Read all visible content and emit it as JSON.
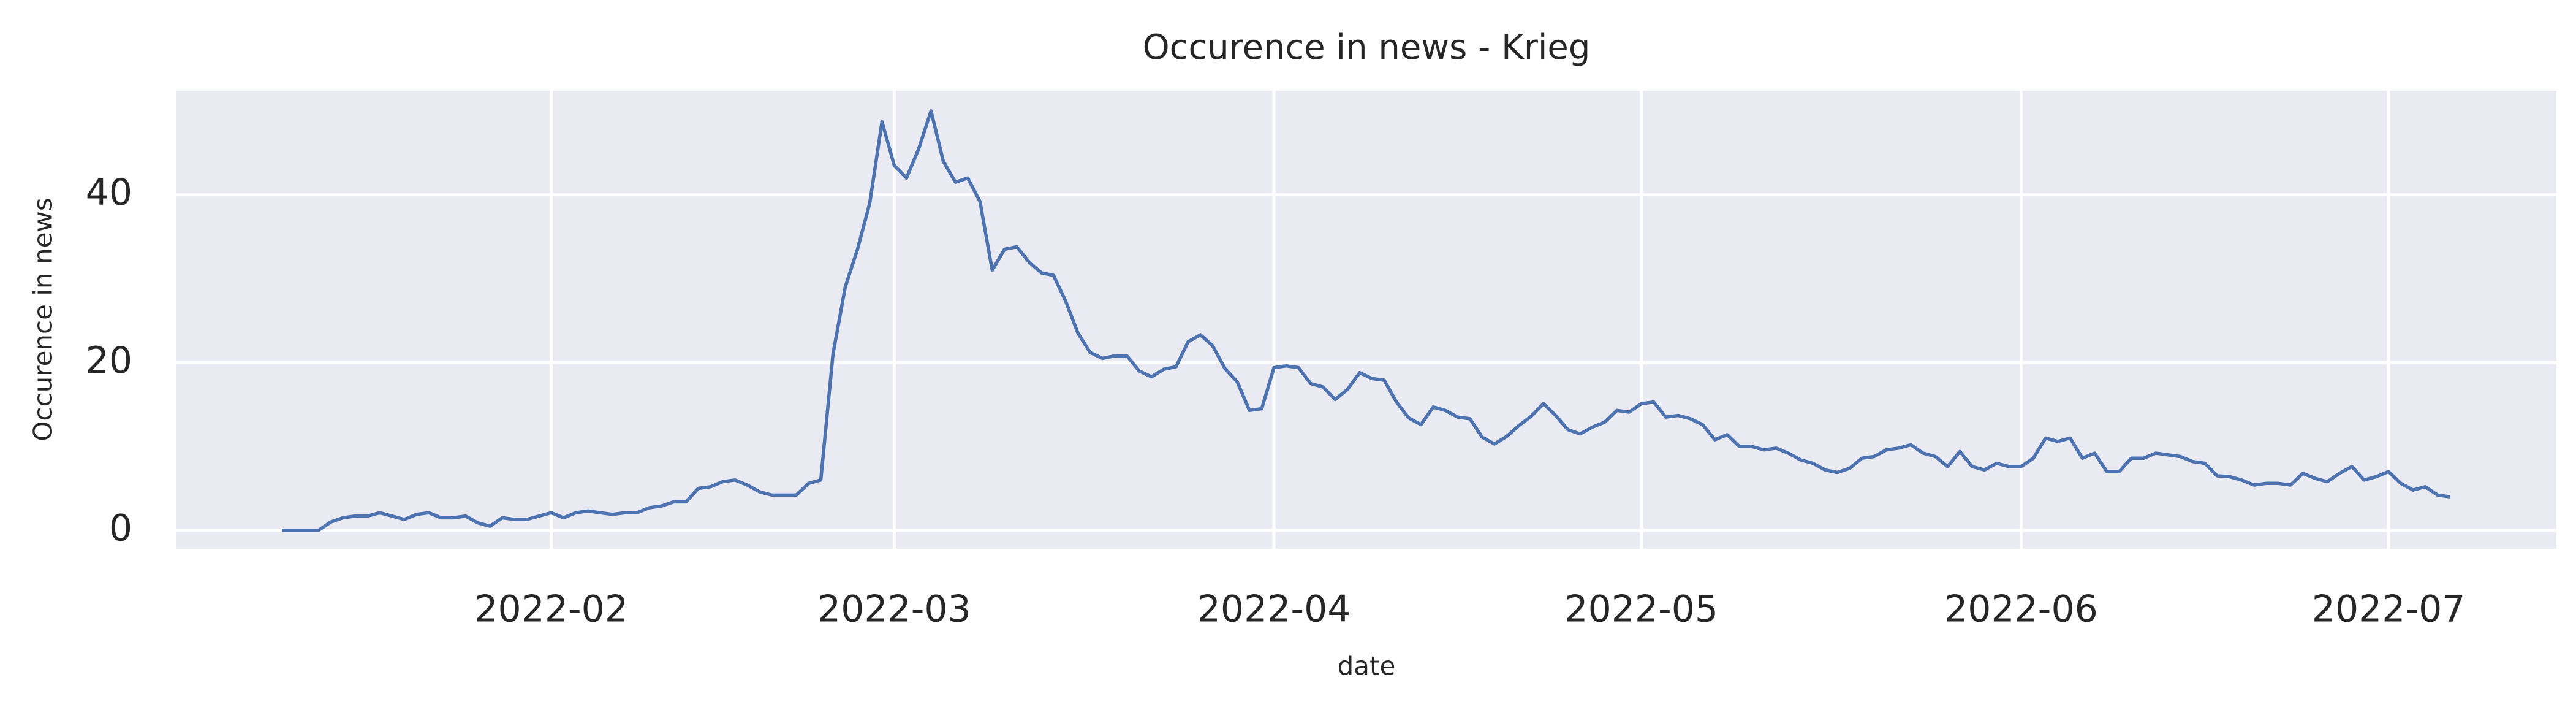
{
  "chart_data": {
    "type": "line",
    "title": "Occurence in news - Krieg",
    "xlabel": "date",
    "ylabel": "Occurence in news",
    "color": "#4c72b0",
    "grid": true,
    "values": [
      0,
      0,
      0,
      0,
      1,
      1.5,
      1.7,
      1.7,
      2.1,
      1.7,
      1.3,
      1.9,
      2.1,
      1.5,
      1.5,
      1.7,
      0.9,
      0.5,
      1.5,
      1.3,
      1.3,
      1.7,
      2.1,
      1.5,
      2.1,
      2.3,
      2.1,
      1.9,
      2.1,
      2.1,
      2.7,
      2.9,
      3.4,
      3.4,
      5,
      5.2,
      5.8,
      6,
      5.4,
      4.6,
      4.2,
      4.2,
      4.2,
      5.6,
      6,
      21,
      29,
      33.5,
      39,
      48.7,
      43.5,
      42,
      45.5,
      50,
      44,
      41.5,
      42,
      39.2,
      31,
      33.5,
      33.8,
      32,
      30.7,
      30.4,
      27.3,
      23.5,
      21.2,
      20.5,
      20.8,
      20.8,
      19,
      18.3,
      19.2,
      19.5,
      22.5,
      23.3,
      22,
      19.3,
      17.7,
      14.3,
      14.5,
      19.4,
      19.6,
      19.4,
      17.5,
      17.1,
      15.6,
      16.8,
      18.8,
      18.1,
      17.9,
      15.3,
      13.4,
      12.6,
      14.7,
      14.3,
      13.5,
      13.3,
      11.1,
      10.3,
      11.2,
      12.5,
      13.6,
      15.1,
      13.7,
      12,
      11.5,
      12.3,
      12.9,
      14.3,
      14.1,
      15.1,
      15.3,
      13.5,
      13.7,
      13.3,
      12.6,
      10.8,
      11.4,
      10,
      10,
      9.6,
      9.8,
      9.2,
      8.4,
      8,
      7.2,
      6.9,
      7.4,
      8.6,
      8.8,
      9.6,
      9.8,
      10.2,
      9.2,
      8.8,
      7.6,
      9.4,
      7.6,
      7.2,
      8,
      7.6,
      7.6,
      8.6,
      11,
      10.6,
      11,
      8.6,
      9.2,
      7,
      7,
      8.6,
      8.6,
      9.2,
      9,
      8.8,
      8.2,
      8,
      6.5,
      6.4,
      6,
      5.4,
      5.6,
      5.6,
      5.4,
      6.8,
      6.2,
      5.8,
      6.8,
      7.6,
      6,
      6.4,
      7,
      5.6,
      4.8,
      5.2,
      4.2,
      4
    ],
    "xlim": [
      -8.6,
      185.7
    ],
    "xticks": [
      {
        "value": 22,
        "label": "2022-02"
      },
      {
        "value": 50,
        "label": "2022-03"
      },
      {
        "value": 81,
        "label": "2022-04"
      },
      {
        "value": 111,
        "label": "2022-05"
      },
      {
        "value": 142,
        "label": "2022-06"
      },
      {
        "value": 172,
        "label": "2022-07"
      }
    ],
    "ylim": [
      -2.2,
      52.4
    ],
    "yticks": [
      0,
      20,
      40
    ]
  }
}
